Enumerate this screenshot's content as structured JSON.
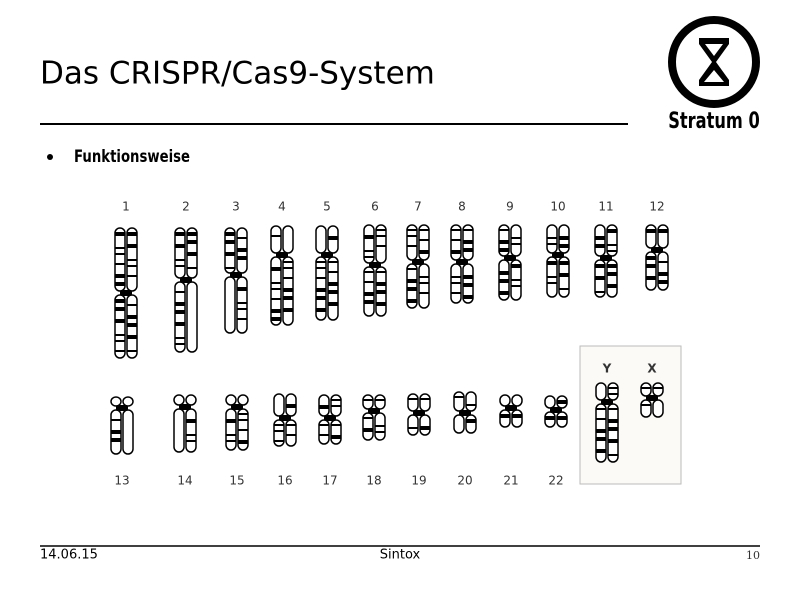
{
  "header": {
    "title": "Das CRISPR/Cas9-System",
    "logo_text": "Stratum 0"
  },
  "bullets": [
    "Funktionsweise"
  ],
  "karyotype": {
    "autosomes": [
      "1",
      "2",
      "3",
      "4",
      "5",
      "6",
      "7",
      "8",
      "9",
      "10",
      "11",
      "12",
      "13",
      "14",
      "15",
      "16",
      "17",
      "18",
      "19",
      "20",
      "21",
      "22"
    ],
    "sex_chromosomes": [
      "Y",
      "X"
    ]
  },
  "footer": {
    "date": "14.06.15",
    "author": "Sintox",
    "page": "10"
  }
}
